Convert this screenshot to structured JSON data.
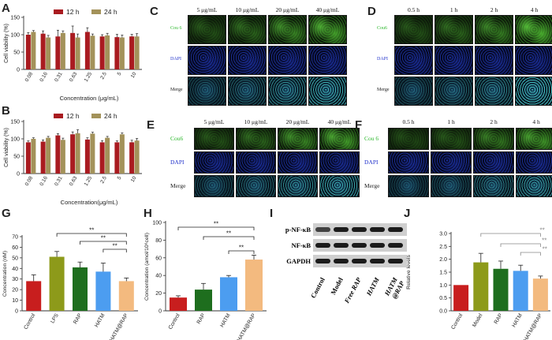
{
  "colors": {
    "red": "#a91b20",
    "olive": "#a3925a",
    "control": "#c81e1e",
    "lps": "#8d9a1a",
    "rap": "#1e6e1e",
    "hatm": "#4c9df0",
    "hatmrap": "#f3ba7f"
  },
  "panels": {
    "A": "A",
    "B": "B",
    "C": "C",
    "D": "D",
    "E": "E",
    "F": "F",
    "G": "G",
    "H": "H",
    "I": "I",
    "J": "J"
  },
  "microscopy": {
    "C": {
      "cols": [
        "5 μg/mL",
        "10 μg/mL",
        "20 μg/mL",
        "40 μg/mL"
      ],
      "rows": [
        "Cou 6",
        "DAPI",
        "Merge"
      ],
      "row_key": "concentration"
    },
    "D": {
      "cols": [
        "0.5 h",
        "1 h",
        "2 h",
        "4 h"
      ],
      "rows": [
        "Cou6",
        "DAPI",
        "Merge"
      ],
      "row_key": "time"
    },
    "E": {
      "cols": [
        "5 μg/mL",
        "10 μg/mL",
        "20 μg/mL",
        "40 μg/mL"
      ],
      "rows": [
        "Cou6",
        "DAPI",
        "Merge"
      ],
      "row_key": "concentration"
    },
    "F": {
      "cols": [
        "0.5 h",
        "1 h",
        "2 h",
        "4 h"
      ],
      "rows": [
        "Cou 6",
        "DAPI",
        "Merge"
      ],
      "row_key": "time"
    }
  },
  "western": {
    "rows": [
      "p-NF-κB",
      "NF-κB",
      "GAPDH"
    ],
    "lanes": [
      "Control",
      "Model",
      "Free RAP",
      "HATM",
      "HATM @RAP"
    ]
  },
  "chart_data": [
    {
      "id": "A",
      "type": "bar",
      "categories": [
        "0.08",
        "0.16",
        "0.31",
        "0.63",
        "1.25",
        "2.5",
        "5",
        "10"
      ],
      "series": [
        {
          "name": "12 h",
          "values": [
            100,
            103,
            95,
            105,
            108,
            95,
            93,
            95
          ],
          "errors": [
            6,
            8,
            18,
            20,
            12,
            5,
            8,
            6
          ]
        },
        {
          "name": "24 h",
          "values": [
            108,
            92,
            105,
            92,
            97,
            98,
            92,
            95
          ],
          "errors": [
            4,
            6,
            6,
            10,
            5,
            6,
            7,
            8
          ]
        }
      ],
      "xlabel": "Concentration (μg/mL)",
      "ylabel": "Cell viability (%)",
      "yticks": [
        0,
        50,
        100,
        150
      ],
      "ylim": [
        0,
        150
      ],
      "legend": "top"
    },
    {
      "id": "B",
      "type": "bar",
      "categories": [
        "0.08",
        "0.16",
        "0.31",
        "0.63",
        "1.25",
        "2.5",
        "5",
        "10"
      ],
      "series": [
        {
          "name": "12 h",
          "values": [
            90,
            92,
            110,
            113,
            98,
            90,
            90,
            90
          ],
          "errors": [
            4,
            5,
            5,
            7,
            5,
            5,
            4,
            6
          ]
        },
        {
          "name": "24 h",
          "values": [
            100,
            103,
            97,
            116,
            115,
            103,
            113,
            95
          ],
          "errors": [
            3,
            4,
            5,
            10,
            4,
            4,
            4,
            6
          ]
        }
      ],
      "xlabel": "Concentration(μg/mL)",
      "ylabel": "Cell viability (%)",
      "yticks": [
        0,
        50,
        100,
        150
      ],
      "ylim": [
        0,
        150
      ],
      "legend": "top"
    },
    {
      "id": "G",
      "type": "bar",
      "categories": [
        "Control",
        "LPS",
        "RAP",
        "HATM",
        "HATM@RAP"
      ],
      "values": [
        28,
        51,
        41,
        37,
        28
      ],
      "errors": [
        6,
        5,
        5,
        8,
        3
      ],
      "ylabel": "Concentration (nM)",
      "yticks": [
        0,
        10,
        20,
        30,
        40,
        50,
        60,
        70
      ],
      "ylim": [
        0,
        70
      ],
      "significance": [
        "**",
        "**",
        "**"
      ]
    },
    {
      "id": "H",
      "type": "bar",
      "categories": [
        "Control",
        "RAP",
        "HATM",
        "HATM@RAP"
      ],
      "values": [
        15,
        24,
        38,
        58
      ],
      "errors": [
        2,
        7,
        2,
        5
      ],
      "ylabel": "Concentration (amol/10⁶cell)",
      "yticks": [
        0,
        20,
        40,
        60,
        80,
        100
      ],
      "ylim": [
        0,
        100
      ],
      "significance": [
        "**",
        "**",
        "**"
      ]
    },
    {
      "id": "J",
      "type": "bar",
      "categories": [
        "Control",
        "Model",
        "RAP",
        "HATM",
        "HATM@RAP"
      ],
      "values": [
        1.0,
        1.88,
        1.63,
        1.55,
        1.25
      ],
      "errors": [
        0,
        0.35,
        0.3,
        0.22,
        0.1
      ],
      "ylabel": "Relative levels",
      "yticks": [
        "0.0",
        "0.5",
        "1.0",
        "1.5",
        "2.0",
        "2.5",
        "3.0"
      ],
      "ylim": [
        0,
        3.0
      ],
      "significance": [
        "**",
        "**",
        "**"
      ]
    }
  ]
}
